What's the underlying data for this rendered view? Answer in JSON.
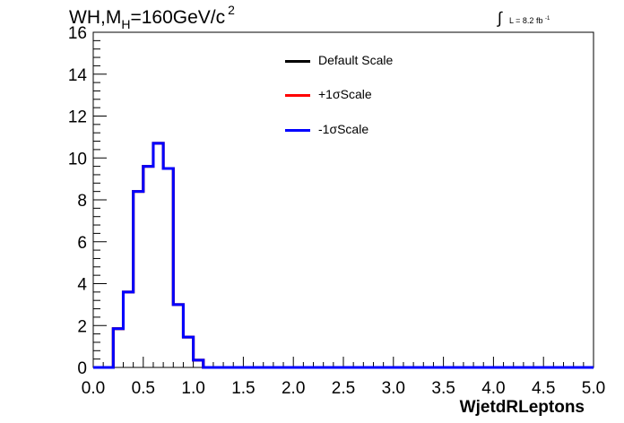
{
  "header": {
    "title_main": "WH,M",
    "title_sub": "H",
    "title_rest": "=160GeV/c",
    "title_sup": "2",
    "lumi_int": "∫",
    "lumi_text": "L = 8.2 fb",
    "lumi_sup": "-1"
  },
  "legend": {
    "entries": [
      {
        "label": "Default Scale",
        "color": "#000000"
      },
      {
        "label": "+1σScale",
        "color": "#ff0000"
      },
      {
        "label": "-1σScale",
        "color": "#0000ff"
      }
    ]
  },
  "chart_data": {
    "type": "line",
    "style": "step-histogram",
    "xlabel": "WjetdRLeptons",
    "ylabel": "",
    "xlim": [
      0.0,
      5.0
    ],
    "ylim": [
      0,
      16
    ],
    "x_ticks": [
      "0.0",
      "0.5",
      "1.0",
      "1.5",
      "2.0",
      "2.5",
      "3.0",
      "3.5",
      "4.0",
      "4.5",
      "5.0"
    ],
    "y_ticks": [
      "0",
      "2",
      "4",
      "6",
      "8",
      "10",
      "12",
      "14",
      "16"
    ],
    "bin_edges": [
      0.0,
      0.1,
      0.2,
      0.3,
      0.4,
      0.5,
      0.6,
      0.7,
      0.8,
      0.9,
      1.0,
      1.1,
      1.2,
      1.3,
      1.4,
      1.5,
      1.6,
      1.7,
      1.8,
      1.9,
      2.0,
      2.1,
      2.2,
      2.3,
      2.4,
      2.5,
      2.6,
      2.7,
      2.8,
      2.9,
      3.0,
      3.1,
      3.2,
      3.3,
      3.4,
      3.5,
      3.6,
      3.7,
      3.8,
      3.9,
      4.0,
      4.1,
      4.2,
      4.3,
      4.4,
      4.5,
      4.6,
      4.7,
      4.8,
      4.9,
      5.0
    ],
    "series": [
      {
        "name": "Default Scale",
        "color": "#000000",
        "values": [
          0,
          0,
          1.85,
          3.6,
          8.4,
          9.6,
          10.7,
          9.5,
          3.0,
          1.45,
          0.35,
          0,
          0,
          0,
          0,
          0,
          0,
          0,
          0,
          0,
          0,
          0,
          0,
          0,
          0,
          0,
          0,
          0,
          0,
          0,
          0,
          0,
          0,
          0,
          0,
          0,
          0,
          0,
          0,
          0,
          0,
          0,
          0,
          0,
          0,
          0,
          0,
          0,
          0,
          0
        ]
      },
      {
        "name": "+1σScale",
        "color": "#ff0000",
        "values": [
          0,
          0,
          1.85,
          3.6,
          8.4,
          9.6,
          10.7,
          9.5,
          3.0,
          1.45,
          0.35,
          0,
          0,
          0,
          0,
          0,
          0,
          0,
          0,
          0,
          0,
          0,
          0,
          0,
          0,
          0,
          0,
          0,
          0,
          0,
          0,
          0,
          0,
          0,
          0,
          0,
          0,
          0,
          0,
          0,
          0,
          0,
          0,
          0,
          0,
          0,
          0,
          0,
          0,
          0
        ]
      },
      {
        "name": "-1σScale",
        "color": "#0000ff",
        "values": [
          0,
          0,
          1.85,
          3.6,
          8.4,
          9.6,
          10.7,
          9.5,
          3.0,
          1.45,
          0.35,
          0,
          0,
          0,
          0,
          0,
          0,
          0,
          0,
          0,
          0,
          0,
          0,
          0,
          0,
          0,
          0,
          0,
          0,
          0,
          0,
          0,
          0,
          0,
          0,
          0,
          0,
          0,
          0,
          0,
          0,
          0,
          0,
          0,
          0,
          0,
          0,
          0,
          0,
          0
        ]
      }
    ]
  }
}
